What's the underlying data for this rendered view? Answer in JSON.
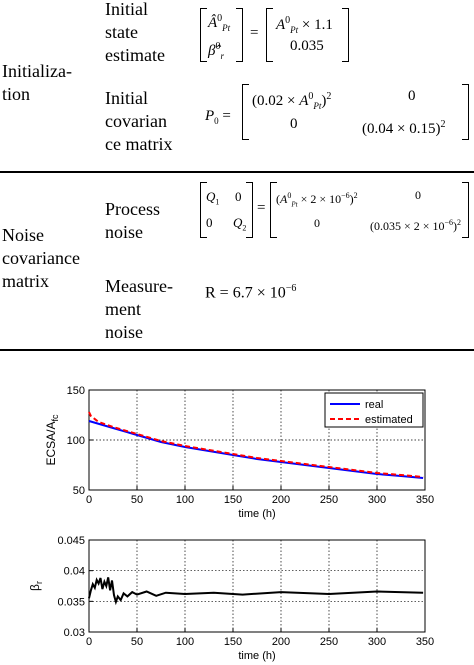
{
  "table": {
    "rows": [
      {
        "group": [
          "Initializa-",
          "tion"
        ],
        "items": [
          {
            "label": [
              "Initial",
              "state",
              "estimate"
            ]
          },
          {
            "label": [
              "Initial",
              "covarian",
              "ce matrix"
            ]
          }
        ]
      },
      {
        "group": [
          "Noise",
          "covariance",
          "matrix"
        ],
        "items": [
          {
            "label": [
              "Process",
              "noise"
            ]
          },
          {
            "label": [
              "Measure-",
              "ment",
              "noise"
            ]
          }
        ]
      }
    ],
    "eq": {
      "state": {
        "lhs": [
          "Â",
          "β̂"
        ],
        "sup": "0",
        "sub_a": "Pt",
        "sub_b": "r",
        "eq_sign": "=",
        "rhs": [
          "× 1.1",
          "0.035"
        ]
      },
      "cov": {
        "lhs": "P",
        "lhs_sub": "0",
        "eq_sign": "=",
        "m11": "(0.02 ×",
        "m11_tail": ")",
        "m12": "0",
        "m21": "0",
        "m22": "(0.04 × 0.15)",
        "pow": "2"
      },
      "process": {
        "q1": "Q",
        "q1_sub": "1",
        "q2": "Q",
        "q2_sub": "2",
        "zero": "0",
        "eq_sign": "=",
        "r11": "× 2 × 10",
        "r22": "(0.035 × 2 × 10",
        "exp": "−6",
        "pow": "2"
      },
      "meas": {
        "text": "R = 6.7 × 10",
        "exp": "−6"
      }
    }
  },
  "chart_data": [
    {
      "type": "line",
      "ylabel": "ECSA/A",
      "ylabel_sub": "fc",
      "xlabel": "time (h)",
      "xlim": [
        0,
        350
      ],
      "ylim": [
        50,
        150
      ],
      "xticks": [
        0,
        50,
        100,
        150,
        200,
        250,
        300,
        350
      ],
      "yticks": [
        50,
        100,
        150
      ],
      "grid": true,
      "legend_position": "top-right",
      "series": [
        {
          "name": "real",
          "color": "#0000ff",
          "style": "solid",
          "x": [
            0,
            25,
            50,
            75,
            100,
            125,
            150,
            175,
            200,
            225,
            250,
            275,
            300,
            325,
            348
          ],
          "y": [
            119,
            112,
            105,
            98,
            93,
            89,
            85,
            81,
            78,
            75,
            72,
            69,
            66,
            64,
            62
          ]
        },
        {
          "name": "estimated",
          "color": "#ff0000",
          "style": "dashed",
          "x": [
            0,
            2,
            10,
            25,
            50,
            75,
            100,
            125,
            150,
            175,
            200,
            225,
            250,
            275,
            300,
            325,
            348
          ],
          "y": [
            128,
            124,
            118,
            113,
            106,
            99,
            94,
            90,
            86,
            82,
            79,
            76,
            73,
            70,
            67,
            65,
            63
          ]
        }
      ]
    },
    {
      "type": "line",
      "ylabel": "β",
      "ylabel_sub": "r",
      "xlabel": "time (h)",
      "xlim": [
        0,
        350
      ],
      "ylim": [
        0.03,
        0.045
      ],
      "xticks": [
        0,
        50,
        100,
        150,
        200,
        250,
        300,
        350
      ],
      "yticks": [
        0.03,
        0.035,
        0.04,
        0.045
      ],
      "ytick_labels": [
        "0.03",
        "0.035",
        "0.04",
        "0.045"
      ],
      "grid": true,
      "series": [
        {
          "name": "",
          "color": "#000000",
          "style": "solid",
          "x": [
            0,
            2,
            4,
            6,
            8,
            10,
            12,
            14,
            16,
            18,
            20,
            22,
            24,
            26,
            28,
            30,
            33,
            36,
            40,
            45,
            50,
            60,
            70,
            80,
            100,
            130,
            160,
            200,
            250,
            300,
            348
          ],
          "y": [
            0.0355,
            0.0368,
            0.0378,
            0.0372,
            0.0385,
            0.0379,
            0.0388,
            0.037,
            0.0382,
            0.0375,
            0.0389,
            0.0368,
            0.0384,
            0.036,
            0.0349,
            0.0358,
            0.0352,
            0.0363,
            0.0358,
            0.0365,
            0.0361,
            0.0366,
            0.0359,
            0.0364,
            0.0362,
            0.0364,
            0.0361,
            0.0365,
            0.0362,
            0.0366,
            0.0364
          ]
        }
      ]
    }
  ]
}
